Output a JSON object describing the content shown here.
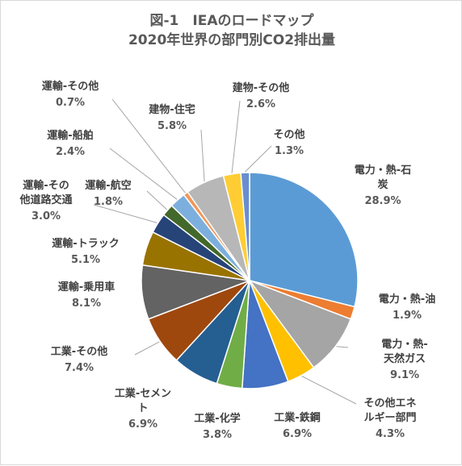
{
  "chart_data": {
    "type": "pie",
    "title": [
      "図-1　IEAのロードマップ",
      "2020年世界の部門別CO2排出量"
    ],
    "unit": "%",
    "slices": [
      {
        "label": "電力・熱-石炭",
        "label_lines": [
          "電力・熱-石",
          "炭"
        ],
        "value": 28.9,
        "value_text": "28.9%",
        "color": "#5b9bd5"
      },
      {
        "label": "電力・熱-油",
        "label_lines": [
          "電力・熱-油"
        ],
        "value": 1.9,
        "value_text": "1.9%",
        "color": "#ed7d31"
      },
      {
        "label": "電力・熱-天然ガス",
        "label_lines": [
          "電力・熱-",
          "天然ガス"
        ],
        "value": 9.1,
        "value_text": "9.1%",
        "color": "#a5a5a5"
      },
      {
        "label": "その他エネルギー部門",
        "label_lines": [
          "その他エネ",
          "ルギー部門"
        ],
        "value": 4.3,
        "value_text": "4.3%",
        "color": "#ffc000"
      },
      {
        "label": "工業-鉄鋼",
        "label_lines": [
          "工業-鉄鋼"
        ],
        "value": 6.9,
        "value_text": "6.9%",
        "color": "#4472c4"
      },
      {
        "label": "工業-化学",
        "label_lines": [
          "工業-化学"
        ],
        "value": 3.8,
        "value_text": "3.8%",
        "color": "#70ad47"
      },
      {
        "label": "工業-セメント",
        "label_lines": [
          "工業-セメン",
          "ト"
        ],
        "value": 6.9,
        "value_text": "6.9%",
        "color": "#255e91"
      },
      {
        "label": "工業-その他",
        "label_lines": [
          "工業-その他"
        ],
        "value": 7.4,
        "value_text": "7.4%",
        "color": "#9e480e"
      },
      {
        "label": "運輸-乗用車",
        "label_lines": [
          "運輸-乗用車"
        ],
        "value": 8.1,
        "value_text": "8.1%",
        "color": "#636363"
      },
      {
        "label": "運輸-トラック",
        "label_lines": [
          "運輸-トラック"
        ],
        "value": 5.1,
        "value_text": "5.1%",
        "color": "#997300"
      },
      {
        "label": "運輸-その他道路交通",
        "label_lines": [
          "運輸-その",
          "他道路交通"
        ],
        "value": 3.0,
        "value_text": "3.0%",
        "color": "#264478"
      },
      {
        "label": "運輸-航空",
        "label_lines": [
          "運輸-航空"
        ],
        "value": 1.8,
        "value_text": "1.8%",
        "color": "#43682b"
      },
      {
        "label": "運輸-船舶",
        "label_lines": [
          "運輸-船舶"
        ],
        "value": 2.4,
        "value_text": "2.4%",
        "color": "#7cafdd"
      },
      {
        "label": "運輸-その他",
        "label_lines": [
          "運輸-その他"
        ],
        "value": 0.7,
        "value_text": "0.7%",
        "color": "#f1975a"
      },
      {
        "label": "建物-住宅",
        "label_lines": [
          "建物-住宅"
        ],
        "value": 5.8,
        "value_text": "5.8%",
        "color": "#b7b7b7"
      },
      {
        "label": "建物-その他",
        "label_lines": [
          "建物-その他"
        ],
        "value": 2.6,
        "value_text": "2.6%",
        "color": "#ffcd33"
      },
      {
        "label": "その他",
        "label_lines": [
          "その他"
        ],
        "value": 1.3,
        "value_text": "1.3%",
        "color": "#698ed0"
      }
    ],
    "legend": "none",
    "start_angle": "12 o'clock, clockwise"
  }
}
